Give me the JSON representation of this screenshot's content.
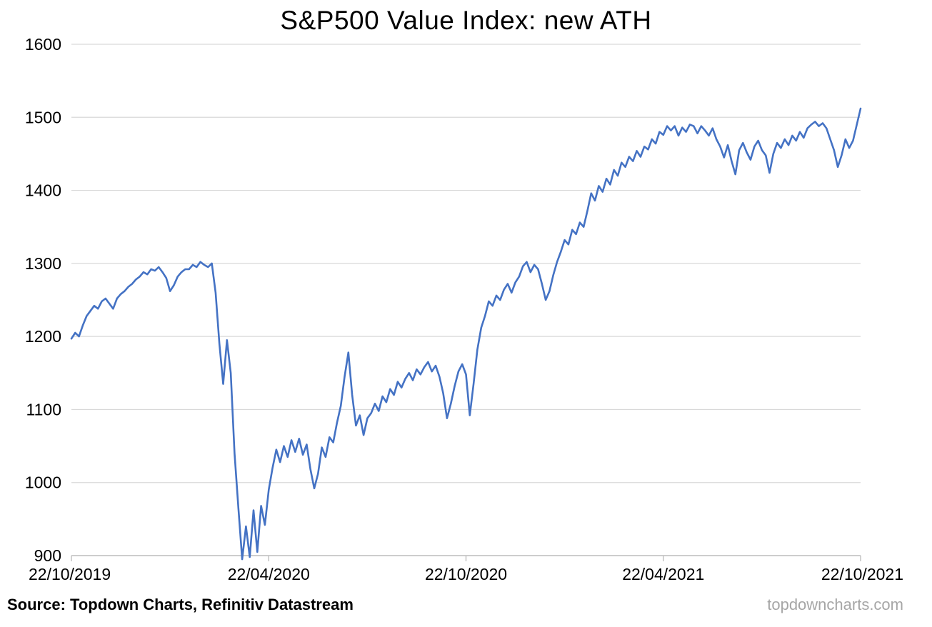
{
  "title": "S&P500 Value Index: new ATH",
  "source": "Source: Topdown Charts, Refinitiv Datastream",
  "watermark": "topdowncharts.com",
  "chart_data": {
    "type": "line",
    "title": "S&P500 Value Index: new ATH",
    "xlabel": "",
    "ylabel": "",
    "ylim": [
      900,
      1600
    ],
    "y_tick_step": 100,
    "y_tick_labels": [
      "900",
      "1000",
      "1100",
      "1200",
      "1300",
      "1400",
      "1500",
      "1600"
    ],
    "x_tick_labels": [
      "22/10/2019",
      "22/04/2020",
      "22/10/2020",
      "22/04/2021",
      "22/10/2021"
    ],
    "grid": "horizontal",
    "legend": "none",
    "line_color": "#4472C4",
    "gridline_color": "#d9d9d9",
    "axis_color": "#bfbfbf",
    "text_color": "#000000",
    "series": [
      {
        "name": "S&P500 Value Index",
        "values": [
          1197,
          1205,
          1200,
          1215,
          1228,
          1235,
          1242,
          1238,
          1248,
          1252,
          1245,
          1238,
          1252,
          1258,
          1262,
          1268,
          1272,
          1278,
          1282,
          1288,
          1285,
          1292,
          1290,
          1295,
          1288,
          1280,
          1262,
          1270,
          1282,
          1288,
          1292,
          1292,
          1298,
          1295,
          1302,
          1298,
          1295,
          1300,
          1260,
          1190,
          1135,
          1195,
          1150,
          1040,
          965,
          895,
          940,
          898,
          962,
          905,
          968,
          942,
          990,
          1020,
          1045,
          1028,
          1050,
          1035,
          1058,
          1042,
          1060,
          1038,
          1052,
          1018,
          992,
          1012,
          1048,
          1035,
          1062,
          1055,
          1082,
          1105,
          1145,
          1178,
          1120,
          1078,
          1092,
          1065,
          1088,
          1095,
          1108,
          1098,
          1118,
          1110,
          1128,
          1120,
          1138,
          1130,
          1142,
          1150,
          1140,
          1155,
          1148,
          1158,
          1165,
          1152,
          1160,
          1145,
          1122,
          1088,
          1108,
          1132,
          1152,
          1162,
          1148,
          1092,
          1135,
          1182,
          1212,
          1228,
          1248,
          1242,
          1256,
          1250,
          1264,
          1272,
          1260,
          1274,
          1282,
          1296,
          1302,
          1288,
          1298,
          1292,
          1272,
          1250,
          1262,
          1284,
          1302,
          1316,
          1332,
          1326,
          1346,
          1340,
          1356,
          1350,
          1372,
          1396,
          1386,
          1406,
          1398,
          1416,
          1408,
          1428,
          1420,
          1438,
          1432,
          1446,
          1440,
          1454,
          1446,
          1460,
          1456,
          1470,
          1464,
          1480,
          1476,
          1488,
          1482,
          1488,
          1475,
          1486,
          1480,
          1490,
          1488,
          1478,
          1488,
          1482,
          1475,
          1485,
          1470,
          1460,
          1445,
          1462,
          1440,
          1422,
          1455,
          1465,
          1452,
          1442,
          1460,
          1468,
          1455,
          1448,
          1424,
          1450,
          1465,
          1458,
          1470,
          1462,
          1475,
          1468,
          1480,
          1472,
          1485,
          1490,
          1494,
          1488,
          1492,
          1485,
          1470,
          1455,
          1432,
          1448,
          1470,
          1458,
          1468,
          1490,
          1512
        ]
      }
    ]
  }
}
